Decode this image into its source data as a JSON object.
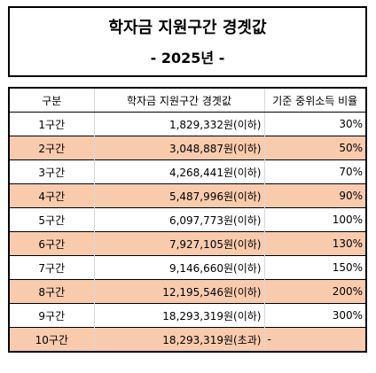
{
  "title": {
    "main": "학자금 지원구간 경곗값",
    "year": "- 2025년 -"
  },
  "table": {
    "headers": [
      "구분",
      "학자금 지원구간 경곗값",
      "기준 중위소득 비율"
    ],
    "rows": [
      {
        "tier": "1구간",
        "amount": "1,829,332원(이하)",
        "ratio": "30%"
      },
      {
        "tier": "2구간",
        "amount": "3,048,887원(이하)",
        "ratio": "50%"
      },
      {
        "tier": "3구간",
        "amount": "4,268,441원(이하)",
        "ratio": "70%"
      },
      {
        "tier": "4구간",
        "amount": "5,487,996원(이하)",
        "ratio": "90%"
      },
      {
        "tier": "5구간",
        "amount": "6,097,773원(이하)",
        "ratio": "100%"
      },
      {
        "tier": "6구간",
        "amount": "7,927,105원(이하)",
        "ratio": "130%"
      },
      {
        "tier": "7구간",
        "amount": "9,146,660원(이하)",
        "ratio": "150%"
      },
      {
        "tier": "8구간",
        "amount": "12,195,546원(이하)",
        "ratio": "200%"
      },
      {
        "tier": "9구간",
        "amount": "18,293,319원(이하)",
        "ratio": "300%"
      },
      {
        "tier": "10구간",
        "amount": "18,293,319원(초과)",
        "ratio": "-"
      }
    ]
  },
  "colors": {
    "highlight_row": "#f8cbad",
    "border": "#000000"
  }
}
